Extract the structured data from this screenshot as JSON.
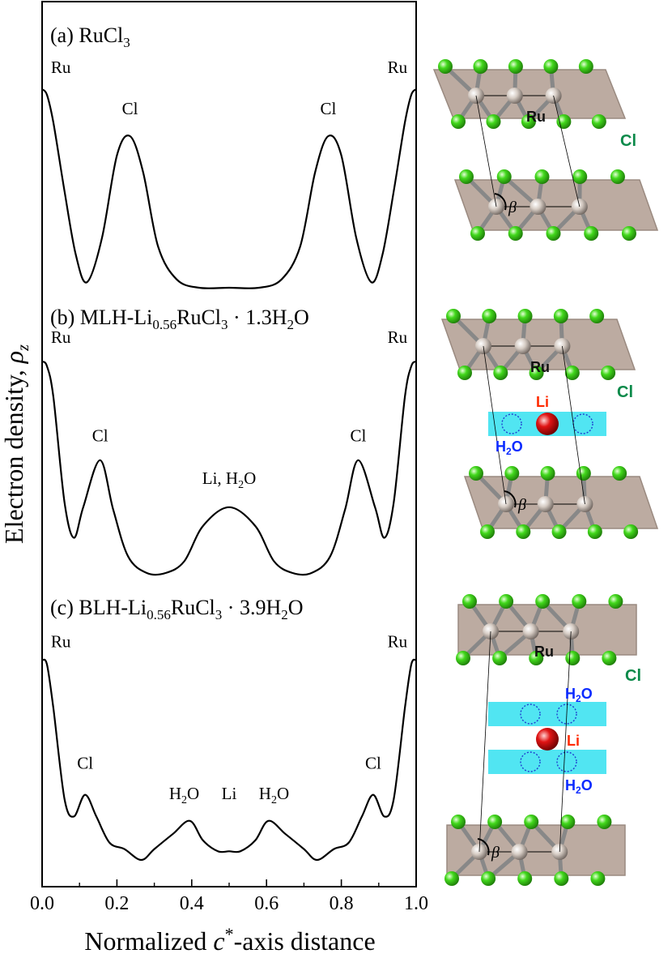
{
  "chart_data": {
    "type": "line",
    "ylabel": "Electron density, ρz",
    "ylabel_main": "Electron density, ",
    "ylabel_sym": "ρ",
    "ylabel_sub": "z",
    "xlabel_pre": "Normalized ",
    "xlabel_sym": "c",
    "xlabel_sup": "*",
    "xlabel_post": "-axis distance",
    "xlim": [
      0.0,
      1.0
    ],
    "x_ticks": [
      "0.0",
      "0.2",
      "0.4",
      "0.6",
      "0.8",
      "1.0"
    ],
    "panels": [
      {
        "label": {
          "pre": "(a) RuCl",
          "sub": "3",
          "post": ""
        },
        "x": [
          0.0,
          0.013,
          0.03,
          0.06,
          0.09,
          0.12,
          0.16,
          0.2,
          0.235,
          0.27,
          0.31,
          0.36,
          0.42,
          0.5,
          0.58,
          0.64,
          0.69,
          0.73,
          0.765,
          0.8,
          0.84,
          0.88,
          0.91,
          0.94,
          0.97,
          0.987,
          1.0
        ],
        "y": [
          0.72,
          0.7,
          0.6,
          0.35,
          0.12,
          0.02,
          0.18,
          0.48,
          0.55,
          0.42,
          0.15,
          0.03,
          0.0,
          0.0,
          0.0,
          0.03,
          0.15,
          0.42,
          0.55,
          0.48,
          0.18,
          0.02,
          0.12,
          0.35,
          0.6,
          0.7,
          0.72
        ],
        "annotations": [
          {
            "text": "Ru",
            "x": 0.05,
            "y": 0.78
          },
          {
            "text": "Cl",
            "x": 0.235,
            "y": 0.63
          },
          {
            "text": "Cl",
            "x": 0.765,
            "y": 0.63
          },
          {
            "text": "Ru",
            "x": 0.95,
            "y": 0.78
          }
        ]
      },
      {
        "label": {
          "pre": "(b) MLH-Li",
          "sub": "0.56",
          "post": "RuCl",
          "sub2": "3",
          "post2": " · 1.3H",
          "sub3": "2",
          "post3": "O"
        },
        "x": [
          0.0,
          0.013,
          0.03,
          0.06,
          0.085,
          0.11,
          0.155,
          0.19,
          0.23,
          0.28,
          0.33,
          0.38,
          0.43,
          0.5,
          0.57,
          0.62,
          0.67,
          0.72,
          0.77,
          0.81,
          0.845,
          0.89,
          0.915,
          0.94,
          0.97,
          0.987,
          1.0
        ],
        "y": [
          0.9,
          0.88,
          0.75,
          0.3,
          0.15,
          0.28,
          0.48,
          0.27,
          0.07,
          0.0,
          0.0,
          0.05,
          0.2,
          0.28,
          0.2,
          0.05,
          0.0,
          0.0,
          0.07,
          0.27,
          0.48,
          0.28,
          0.15,
          0.3,
          0.75,
          0.88,
          0.9
        ],
        "annotations": [
          {
            "text": "Ru",
            "x": 0.05,
            "y": 0.98
          },
          {
            "text": "Cl",
            "x": 0.155,
            "y": 0.56
          },
          {
            "text": "Li, H₂O",
            "x": 0.5,
            "y": 0.38
          },
          {
            "text": "Cl",
            "x": 0.845,
            "y": 0.56
          },
          {
            "text": "Ru",
            "x": 0.95,
            "y": 0.98
          }
        ]
      },
      {
        "label": {
          "pre": "(c) BLH-Li",
          "sub": "0.56",
          "post": "RuCl",
          "sub2": "3",
          "post2": " · 3.9H",
          "sub3": "2",
          "post3": "O"
        },
        "x": [
          0.0,
          0.013,
          0.03,
          0.06,
          0.085,
          0.115,
          0.145,
          0.18,
          0.22,
          0.265,
          0.3,
          0.35,
          0.395,
          0.43,
          0.47,
          0.5,
          0.53,
          0.57,
          0.605,
          0.65,
          0.7,
          0.735,
          0.78,
          0.82,
          0.855,
          0.885,
          0.915,
          0.94,
          0.97,
          0.987,
          1.0
        ],
        "y": [
          0.92,
          0.9,
          0.7,
          0.28,
          0.2,
          0.3,
          0.2,
          0.08,
          0.05,
          0.0,
          0.05,
          0.12,
          0.18,
          0.09,
          0.04,
          0.04,
          0.04,
          0.09,
          0.18,
          0.12,
          0.05,
          0.0,
          0.05,
          0.08,
          0.2,
          0.3,
          0.2,
          0.28,
          0.7,
          0.9,
          0.92
        ],
        "annotations": [
          {
            "text": "Ru",
            "x": 0.05,
            "y": 0.98
          },
          {
            "text": "Cl",
            "x": 0.115,
            "y": 0.42
          },
          {
            "text": "H₂O",
            "x": 0.38,
            "y": 0.28
          },
          {
            "text": "Li",
            "x": 0.5,
            "y": 0.28
          },
          {
            "text": "H₂O",
            "x": 0.62,
            "y": 0.28
          },
          {
            "text": "Cl",
            "x": 0.885,
            "y": 0.42
          },
          {
            "text": "Ru",
            "x": 0.95,
            "y": 0.98
          }
        ]
      }
    ]
  },
  "structures": {
    "atom_labels": {
      "ru": "Ru",
      "cl": "Cl",
      "li": "Li",
      "water": "H₂O",
      "beta": "β"
    },
    "colors": {
      "slab": "#b8a79c",
      "slab_edge": "#9a8a80",
      "ru_atom": "#d8cfc8",
      "cl_atom": "#3fd61f",
      "bond": "#888888",
      "li_atom": "#d81010",
      "water_band": "#33e0f0",
      "water_circle": "#1f3fd0",
      "li_text": "#ff2a00",
      "water_text": "#0a2aff",
      "cl_text": "#0c8a4a"
    }
  }
}
